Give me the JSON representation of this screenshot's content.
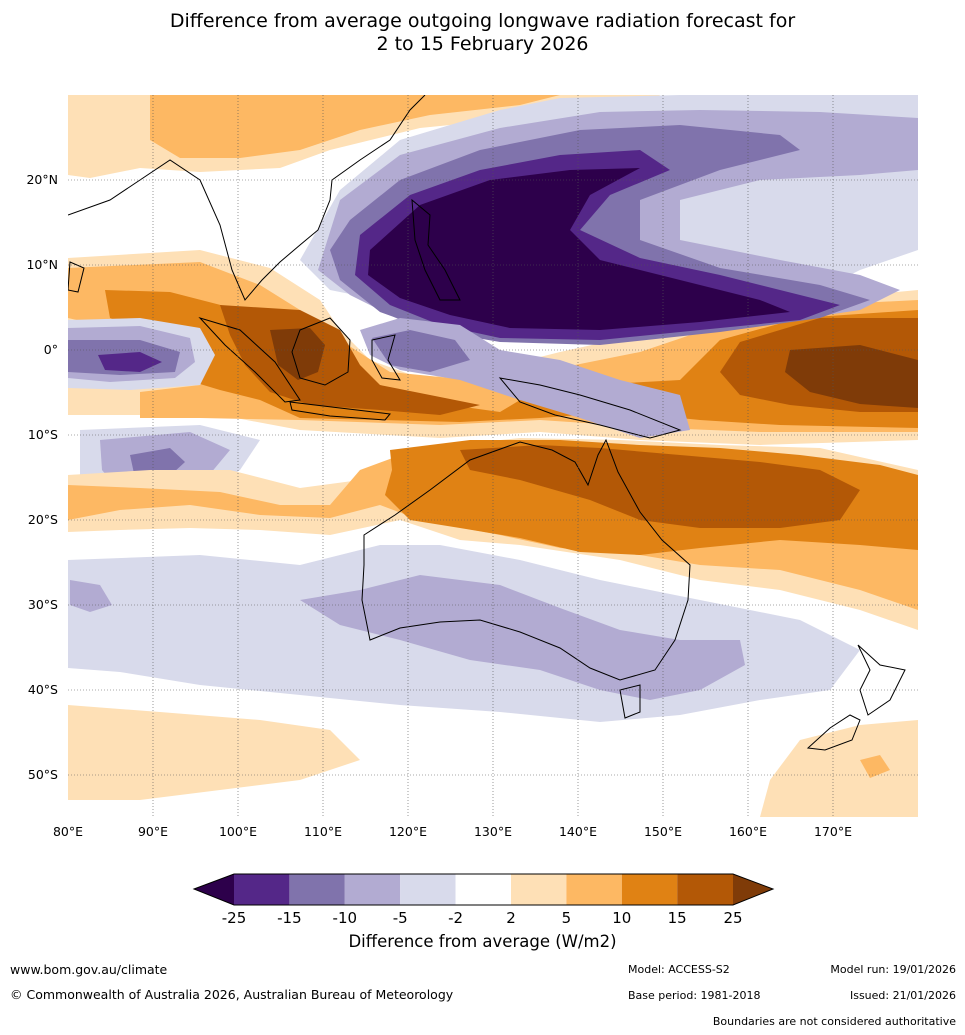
{
  "title_line1": "Difference from average outgoing longwave radiation forecast for",
  "title_line2": "2 to 15 February 2026",
  "map": {
    "lon_range": [
      80,
      180
    ],
    "lat_range": [
      -55,
      30
    ],
    "lon_ticks": [
      "80°E",
      "90°E",
      "100°E",
      "110°E",
      "120°E",
      "130°E",
      "140°E",
      "150°E",
      "160°E",
      "170°E"
    ],
    "lat_ticks": [
      "20°N",
      "10°N",
      "0°",
      "10°S",
      "20°S",
      "30°S",
      "40°S",
      "50°S"
    ]
  },
  "colorbar": {
    "labels": [
      "-25",
      "-15",
      "-10",
      "-5",
      "-2",
      "2",
      "5",
      "10",
      "15",
      "25"
    ],
    "colors": [
      "#2d004b",
      "#542788",
      "#8073ac",
      "#b2abd2",
      "#d8daeb",
      "#ffffff",
      "#fee0b6",
      "#fdb863",
      "#e08214",
      "#b35806",
      "#7f3b08"
    ],
    "title": "Difference from average (W/m2)"
  },
  "footer": {
    "website": "www.bom.gov.au/climate",
    "copyright": "© Commonwealth of Australia 2026, Australian Bureau of Meteorology",
    "model": "Model: ACCESS-S2",
    "base_period": "Base period: 1981-2018",
    "model_run": "Model run: 19/01/2026",
    "issued": "Issued: 21/01/2026",
    "disclaimer": "Boundaries are not considered authoritative"
  }
}
